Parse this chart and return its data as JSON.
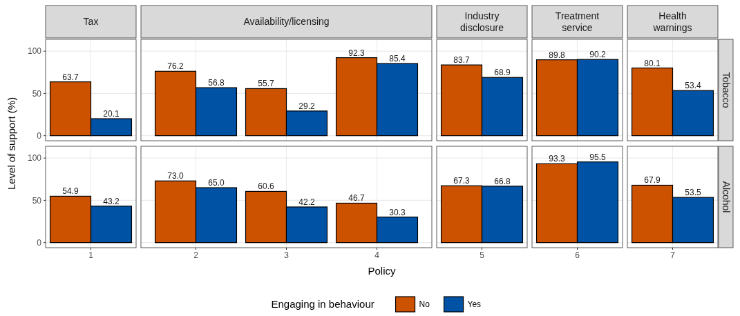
{
  "chart_data": [
    {
      "type": "bar",
      "title": "Tax",
      "ylabel": "Level of support (%)",
      "legend": "bottom",
      "legend_title": "Engaging in behaviour",
      "categories": [
        "1"
      ],
      "ylim": [
        -6,
        114
      ],
      "yticks": [
        0,
        50,
        100
      ],
      "grid": true,
      "tick_labels": "y",
      "series": [
        {
          "name": "No",
          "color": "#cc5200",
          "values": [
            63.7
          ],
          "value_labels": [
            "63.7"
          ]
        },
        {
          "name": "Yes",
          "color": "#0052a5",
          "values": [
            20.1
          ],
          "value_labels": [
            "20.1"
          ]
        }
      ]
    },
    {
      "type": "bar",
      "title": "Availability/licensing",
      "categories": [
        "2",
        "3",
        "4"
      ],
      "ylim": [
        -6,
        114
      ],
      "yticks": [
        0,
        50,
        100
      ],
      "grid": true,
      "tick_labels": false,
      "series": [
        {
          "color": "#cc5200",
          "values": [
            76.2,
            55.7,
            92.3
          ],
          "value_labels": [
            "76.2",
            "55.7",
            "92.3"
          ]
        },
        {
          "color": "#0052a5",
          "values": [
            56.8,
            29.2,
            85.4
          ],
          "value_labels": [
            "56.8",
            "29.2",
            "85.4"
          ]
        }
      ]
    },
    {
      "type": "bar",
      "title": "Industry disclosure",
      "categories": [
        "5"
      ],
      "ylim": [
        -6,
        114
      ],
      "yticks": [
        0,
        50,
        100
      ],
      "grid": true,
      "tick_labels": false,
      "series": [
        {
          "color": "#cc5200",
          "values": [
            83.7
          ],
          "value_labels": [
            "83.7"
          ]
        },
        {
          "color": "#0052a5",
          "values": [
            68.9
          ],
          "value_labels": [
            "68.9"
          ]
        }
      ]
    },
    {
      "type": "bar",
      "title": "Treatment service",
      "categories": [
        "6"
      ],
      "ylim": [
        -6,
        114
      ],
      "yticks": [
        0,
        50,
        100
      ],
      "grid": true,
      "tick_labels": false,
      "series": [
        {
          "color": "#cc5200",
          "values": [
            89.8
          ],
          "value_labels": [
            "89.8"
          ]
        },
        {
          "color": "#0052a5",
          "values": [
            90.2
          ],
          "value_labels": [
            "90.2"
          ]
        }
      ]
    },
    {
      "type": "bar",
      "title": "Health warnings",
      "y2label": "Tobacco",
      "categories": [
        "7"
      ],
      "ylim": [
        -6,
        114
      ],
      "yticks": [
        0,
        50,
        100
      ],
      "grid": true,
      "tick_labels": false,
      "series": [
        {
          "color": "#cc5200",
          "values": [
            80.1
          ],
          "value_labels": [
            "80.1"
          ]
        },
        {
          "color": "#0052a5",
          "values": [
            53.4
          ],
          "value_labels": [
            "53.4"
          ]
        }
      ]
    },
    {
      "type": "bar",
      "categories": [
        "1"
      ],
      "ylim": [
        -6,
        114
      ],
      "yticks": [
        0,
        50,
        100
      ],
      "grid": true,
      "series": [
        {
          "color": "#cc5200",
          "values": [
            54.9
          ],
          "value_labels": [
            "54.9"
          ]
        },
        {
          "color": "#0052a5",
          "values": [
            43.2
          ],
          "value_labels": [
            "43.2"
          ]
        }
      ]
    },
    {
      "type": "bar",
      "xlabel": "Policy",
      "categories": [
        "2",
        "3",
        "4"
      ],
      "ylim": [
        -6,
        114
      ],
      "yticks": [
        0,
        50,
        100
      ],
      "grid": true,
      "tick_labels": "x",
      "series": [
        {
          "color": "#cc5200",
          "values": [
            73.0,
            60.6,
            46.7
          ],
          "value_labels": [
            "73.0",
            "60.6",
            "46.7"
          ]
        },
        {
          "color": "#0052a5",
          "values": [
            65.0,
            42.2,
            30.3
          ],
          "value_labels": [
            "65.0",
            "42.2",
            "30.3"
          ]
        }
      ]
    },
    {
      "type": "bar",
      "categories": [
        "5"
      ],
      "ylim": [
        -6,
        114
      ],
      "yticks": [
        0,
        50,
        100
      ],
      "grid": true,
      "tick_labels": "x",
      "series": [
        {
          "color": "#cc5200",
          "values": [
            67.3
          ],
          "value_labels": [
            "67.3"
          ]
        },
        {
          "color": "#0052a5",
          "values": [
            66.8
          ],
          "value_labels": [
            "66.8"
          ]
        }
      ]
    },
    {
      "type": "bar",
      "categories": [
        "6"
      ],
      "ylim": [
        -6,
        114
      ],
      "yticks": [
        0,
        50,
        100
      ],
      "grid": true,
      "tick_labels": "x",
      "series": [
        {
          "color": "#cc5200",
          "values": [
            93.3
          ],
          "value_labels": [
            "93.3"
          ]
        },
        {
          "color": "#0052a5",
          "values": [
            95.5
          ],
          "value_labels": [
            "95.5"
          ]
        }
      ]
    },
    {
      "type": "bar",
      "y2label": "Alcohol",
      "categories": [
        "7"
      ],
      "ylim": [
        -6,
        114
      ],
      "yticks": [
        0,
        50,
        100
      ],
      "grid": true,
      "tick_labels": "x",
      "series": [
        {
          "color": "#cc5200",
          "values": [
            67.9
          ],
          "value_labels": [
            "67.9"
          ]
        },
        {
          "color": "#0052a5",
          "values": [
            53.5
          ],
          "value_labels": [
            "53.5"
          ]
        }
      ]
    }
  ]
}
